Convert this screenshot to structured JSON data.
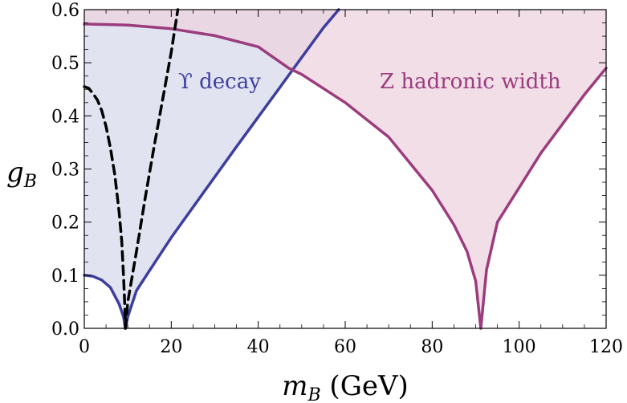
{
  "chart_data": {
    "type": "area",
    "xlim": [
      0,
      120
    ],
    "ylim": [
      0,
      0.6
    ],
    "x_ticks": [
      "0",
      "20",
      "40",
      "60",
      "80",
      "100",
      "120"
    ],
    "y_ticks": [
      "0.0",
      "0.1",
      "0.2",
      "0.3",
      "0.4",
      "0.5",
      "0.6"
    ],
    "xlabel": {
      "var": "m",
      "sub": "B",
      "unit": " (GeV)"
    },
    "ylabel": {
      "var": "g",
      "sub": "B"
    },
    "grid": false,
    "series": [
      {
        "name": "ϒ decay",
        "color": "#3e3e9e",
        "fill": "#d8d9ec",
        "dashed": false,
        "x": [
          0,
          2,
          4,
          6,
          8,
          9,
          9.46,
          10,
          12,
          15,
          20,
          25,
          30,
          35,
          40,
          45,
          50,
          55,
          58.5
        ],
        "y": [
          0.1,
          0.098,
          0.091,
          0.077,
          0.046,
          0.022,
          0.0,
          0.022,
          0.071,
          0.109,
          0.171,
          0.228,
          0.285,
          0.342,
          0.398,
          0.454,
          0.51,
          0.566,
          0.6
        ]
      },
      {
        "name": "Z hadronic width",
        "color": "#9b3c7e",
        "fill": "#ecd3df",
        "dashed": false,
        "x": [
          0,
          10,
          20,
          30,
          40,
          47,
          50,
          60,
          70,
          80,
          85,
          88,
          90,
          91.19,
          92.5,
          95,
          100,
          105,
          110,
          115,
          120
        ],
        "y": [
          0.573,
          0.571,
          0.564,
          0.551,
          0.53,
          0.49,
          0.478,
          0.425,
          0.36,
          0.26,
          0.195,
          0.145,
          0.089,
          0.0,
          0.11,
          0.2,
          0.265,
          0.33,
          0.385,
          0.44,
          0.49
        ]
      },
      {
        "name": "",
        "color": "#000000",
        "fill": "none",
        "dashed": true,
        "x": [
          0,
          1,
          2,
          3,
          4,
          5,
          6,
          7,
          8,
          8.6,
          9.0,
          9.3,
          9.46
        ],
        "y": [
          0.455,
          0.452,
          0.442,
          0.43,
          0.41,
          0.38,
          0.34,
          0.29,
          0.22,
          0.165,
          0.1,
          0.045,
          0.0
        ]
      },
      {
        "name": "",
        "color": "#000000",
        "fill": "none",
        "dashed": true,
        "x": [
          9.46,
          10,
          12,
          14,
          16,
          18,
          20,
          21.5
        ],
        "y": [
          0.0,
          0.05,
          0.145,
          0.245,
          0.34,
          0.43,
          0.52,
          0.6
        ]
      }
    ],
    "annotations": [
      {
        "text": "ϒ decay",
        "series": 0
      },
      {
        "text": "Z hadronic width",
        "series": 1
      }
    ]
  }
}
